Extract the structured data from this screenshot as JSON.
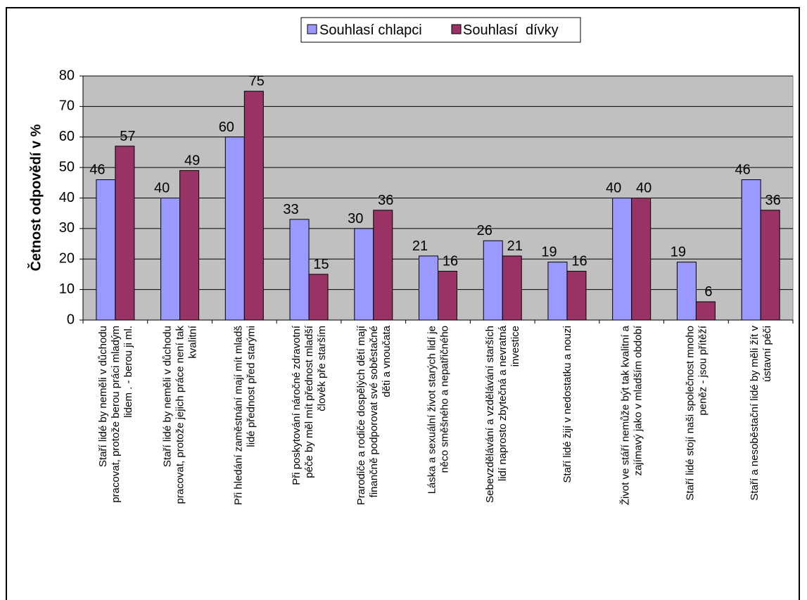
{
  "chart_data": {
    "type": "bar",
    "title": "",
    "xlabel": "",
    "ylabel": "Četnost odpovědí v %",
    "ylim": [
      0,
      80
    ],
    "yticks": [
      0,
      10,
      20,
      30,
      40,
      50,
      60,
      70,
      80
    ],
    "grid": true,
    "legend_position": "top-center",
    "categories": [
      [
        "Staří lidé by neměli v důchodu",
        "pracovat, protože berou práci mladým",
        "lidem . - berou ji ml."
      ],
      [
        "Staří lidé by neměli v důchodu",
        "pracovat, protože jejich práce není tak",
        "kvalitní"
      ],
      [
        "Při hledání zaměstnání mají mít mladš",
        "lidé přednost před starými"
      ],
      [
        "Při poskytování náročné zdravotní",
        "péče by měl mít přednost mladší",
        "člověk pře starším"
      ],
      [
        "Prarodiče a rodiče dospělých dětí mají",
        "finančně podporovat své soběstačné",
        "děti a vnoučata"
      ],
      [
        "Láska a sexuální život starých lidí je",
        "něco směšného a nepatřičného"
      ],
      [
        "Sebevzdělávání a vzdělávání starších",
        "lidí naprosto zbytečná a nevratná",
        "investice"
      ],
      [
        "Staří lidé žijí v nedostatku a nouzi"
      ],
      [
        "Život ve stáří nemůže být tak kvalitní a",
        "zajímavý jako v mladším období"
      ],
      [
        "Staří lidé stojí naši společnost mnoho",
        "peněz - jsou přítěží"
      ],
      [
        "Staří a nesoběstační lidé by měli žít v",
        "ústavní péči"
      ]
    ],
    "series": [
      {
        "name": "Souhlasí chlapci",
        "color": "#9999ff",
        "values": [
          46,
          40,
          60,
          33,
          30,
          21,
          26,
          19,
          40,
          19,
          46
        ]
      },
      {
        "name": "Souhlasí  dívky",
        "color": "#993366",
        "values": [
          57,
          49,
          75,
          15,
          36,
          16,
          21,
          16,
          40,
          6,
          36
        ]
      }
    ]
  }
}
